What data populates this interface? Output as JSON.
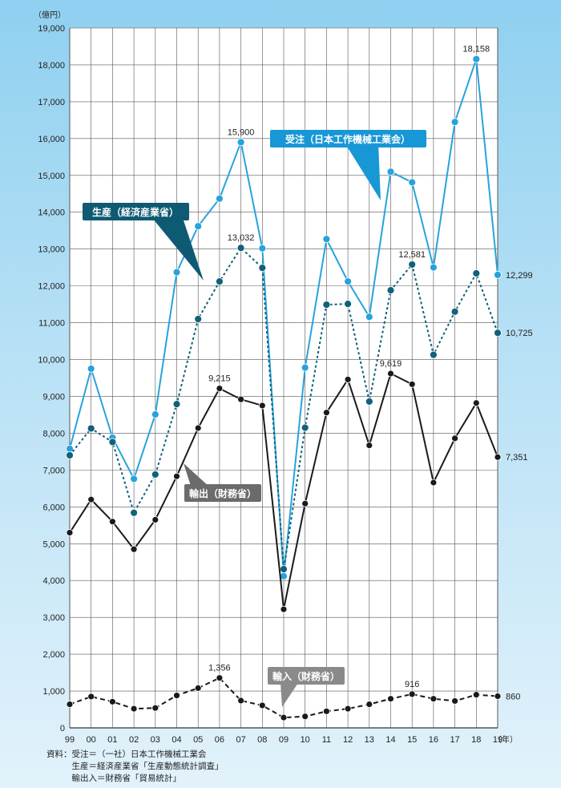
{
  "chart_data": {
    "type": "line",
    "ylabel": "（億円）",
    "xlabel": "（年）",
    "ylim": [
      0,
      19000
    ],
    "yticks": [
      "0",
      "1,000",
      "2,000",
      "3,000",
      "4,000",
      "5,000",
      "6,000",
      "7,000",
      "8,000",
      "9,000",
      "10,000",
      "11,000",
      "12,000",
      "13,000",
      "14,000",
      "15,000",
      "16,000",
      "17,000",
      "18,000",
      "19,000"
    ],
    "categories": [
      "99",
      "00",
      "01",
      "02",
      "03",
      "04",
      "05",
      "06",
      "07",
      "08",
      "09",
      "10",
      "11",
      "12",
      "13",
      "14",
      "15",
      "16",
      "17",
      "18",
      "19"
    ],
    "grid": true,
    "series": [
      {
        "name": "受注（日本工作機械工業会）",
        "color": "#27a3dc",
        "style": "solid",
        "values": [
          7580,
          9750,
          7880,
          6760,
          8510,
          12370,
          13620,
          14370,
          15900,
          13020,
          4120,
          9780,
          13270,
          12120,
          11160,
          15100,
          14810,
          12500,
          16450,
          18158,
          12299
        ]
      },
      {
        "name": "生産（経済産業省）",
        "color": "#10617a",
        "style": "dotted",
        "values": [
          7400,
          8130,
          7760,
          5840,
          6880,
          8790,
          11100,
          12120,
          13032,
          12490,
          4310,
          8150,
          11490,
          11510,
          8860,
          11880,
          12581,
          10130,
          11300,
          12340,
          10725
        ]
      },
      {
        "name": "輸出（財務省）",
        "color": "#1a1a1a",
        "style": "solid",
        "values": [
          5300,
          6200,
          5600,
          4850,
          5650,
          6830,
          8140,
          9215,
          8920,
          8750,
          3220,
          6090,
          8560,
          9460,
          7670,
          9619,
          9330,
          6660,
          7860,
          8820,
          7351
        ]
      },
      {
        "name": "輸入（財務省）",
        "color": "#1a1a1a",
        "style": "dashed",
        "values": [
          640,
          850,
          710,
          520,
          540,
          880,
          1080,
          1356,
          740,
          610,
          280,
          310,
          450,
          520,
          640,
          790,
          916,
          790,
          730,
          900,
          860
        ]
      }
    ],
    "data_labels": [
      {
        "series": 0,
        "index": 8,
        "text": "15,900"
      },
      {
        "series": 0,
        "index": 19,
        "text": "18,158"
      },
      {
        "series": 0,
        "index": 20,
        "text": "12,299"
      },
      {
        "series": 1,
        "index": 8,
        "text": "13,032"
      },
      {
        "series": 1,
        "index": 16,
        "text": "12,581"
      },
      {
        "series": 1,
        "index": 20,
        "text": "10,725"
      },
      {
        "series": 2,
        "index": 7,
        "text": "9,215"
      },
      {
        "series": 2,
        "index": 15,
        "text": "9,619"
      },
      {
        "series": 2,
        "index": 20,
        "text": "7,351"
      },
      {
        "series": 3,
        "index": 7,
        "text": "1,356"
      },
      {
        "series": 3,
        "index": 16,
        "text": "916"
      },
      {
        "series": 3,
        "index": 20,
        "text": "860"
      }
    ]
  },
  "callouts": [
    {
      "text": "受注（日本工作機械工業会）",
      "color": "#1797d6"
    },
    {
      "text": "生産（経済産業省）",
      "color": "#0e5a72"
    },
    {
      "text": "輸出（財務省）",
      "color": "#6b6b6b"
    },
    {
      "text": "輸入（財務省）",
      "color": "#8a8a8a"
    }
  ],
  "source": {
    "lines": [
      "資料：受注＝（一社）日本工作機械工業会",
      "　　　生産＝経済産業省「生産動態統計調査」",
      "　　　輸出入＝財務省「貿易統計」"
    ]
  }
}
